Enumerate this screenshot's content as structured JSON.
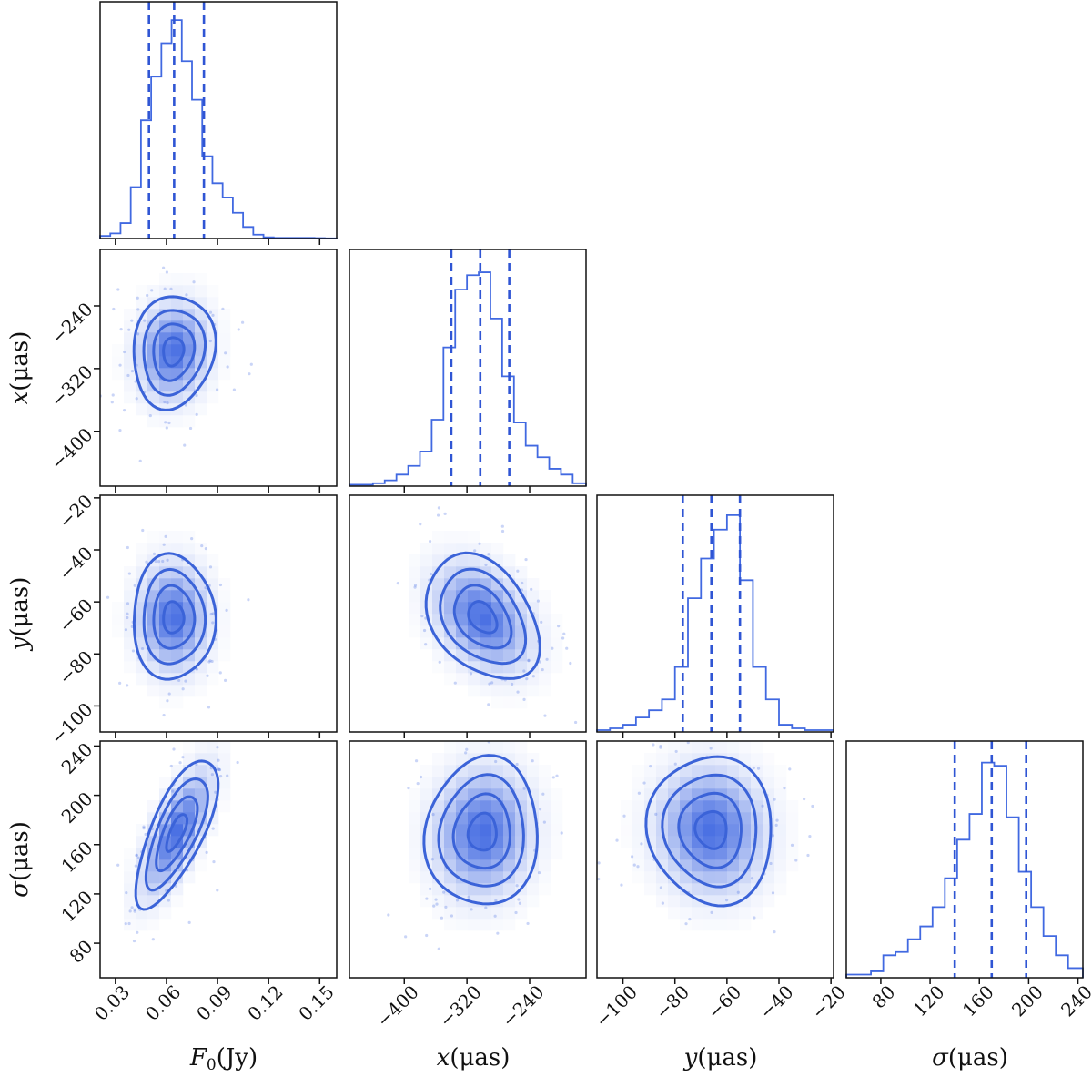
{
  "chart_data": {
    "type": "corner",
    "color": "#4169e1",
    "parameters": [
      {
        "key": "F0",
        "label_main": "F",
        "label_sub": "0",
        "label_rest": "(Jy)",
        "range": [
          0.021,
          0.16
        ],
        "ticks": [
          0.03,
          0.06,
          0.09,
          0.12,
          0.15
        ],
        "tick_labels": [
          "0.03",
          "0.06",
          "0.09",
          "0.12",
          "0.15"
        ],
        "quantiles": [
          0.0497,
          0.0645,
          0.082
        ],
        "hist_edges": [
          0.021,
          0.027,
          0.033,
          0.039,
          0.045,
          0.051,
          0.057,
          0.063,
          0.069,
          0.075,
          0.081,
          0.087,
          0.093,
          0.099,
          0.105,
          0.111,
          0.117,
          0.123,
          0.129,
          0.135,
          0.141,
          0.147,
          0.153,
          0.16
        ],
        "hist_counts": [
          2,
          4,
          12,
          40,
          92,
          126,
          152,
          170,
          138,
          108,
          64,
          43,
          32,
          20,
          9,
          3,
          1,
          0.5,
          0.5,
          0.5,
          0.5,
          0.3,
          0.2
        ],
        "hist_max": 180,
        "marginal_label": ""
      },
      {
        "key": "x",
        "label_main": "x",
        "label_rest": "(μas)",
        "range": [
          -470,
          -168
        ],
        "ticks": [
          -400,
          -320,
          -240
        ],
        "tick_labels": [
          "−400",
          "−320",
          "−240"
        ],
        "quantiles": [
          -340,
          -303,
          -266
        ],
        "hist_edges": [
          -470,
          -455,
          -440,
          -425,
          -410,
          -395,
          -380,
          -365,
          -350,
          -335,
          -320,
          -305,
          -290,
          -275,
          -260,
          -245,
          -230,
          -215,
          -200,
          -185,
          -168
        ],
        "hist_counts": [
          0.5,
          0.5,
          1,
          2,
          4,
          7,
          12,
          23,
          48,
          68,
          73,
          74,
          58,
          38,
          22,
          14,
          10,
          6,
          4,
          1
        ],
        "hist_max": 80,
        "marginal_label": ""
      },
      {
        "key": "y",
        "label_main": "y",
        "label_rest": "(μas)",
        "range": [
          -110,
          -19
        ],
        "ticks": [
          -100,
          -80,
          -60,
          -40,
          -20
        ],
        "tick_labels": [
          "−100",
          "−80",
          "−60",
          "−40",
          "−20"
        ],
        "quantiles": [
          -77,
          -66,
          -55
        ],
        "hist_edges": [
          -110,
          -105,
          -100,
          -95,
          -90,
          -85,
          -80,
          -75,
          -70,
          -65,
          -60,
          -55,
          -50,
          -45,
          -40,
          -35,
          -30,
          -25,
          -19
        ],
        "hist_counts": [
          0.5,
          1,
          2,
          4,
          6,
          9,
          18,
          37,
          48,
          56,
          60,
          42,
          18,
          9,
          2,
          1,
          0.5,
          0.5
        ],
        "hist_max": 64,
        "marginal_label": ""
      },
      {
        "key": "sigma",
        "label_main": "σ",
        "label_rest": "(μas)",
        "range": [
          52,
          244
        ],
        "ticks": [
          80,
          120,
          160,
          200,
          240
        ],
        "tick_labels": [
          "80",
          "120",
          "160",
          "200",
          "240"
        ],
        "quantiles": [
          140,
          170,
          198
        ],
        "hist_edges": [
          52,
          62,
          72,
          82,
          92,
          102,
          112,
          122,
          132,
          142,
          152,
          162,
          172,
          182,
          192,
          202,
          212,
          222,
          232,
          244
        ],
        "hist_counts": [
          1,
          1,
          2,
          7,
          8,
          12,
          16,
          22,
          31,
          43,
          51,
          67,
          66,
          50,
          33,
          22,
          13,
          7,
          3
        ],
        "hist_max": 72,
        "marginal_label": ""
      }
    ],
    "pairs": [
      {
        "row": 1,
        "col": 0,
        "center": [
          0.064,
          -298
        ],
        "sx": 0.012,
        "sy": 36,
        "rho": 0.1
      },
      {
        "row": 2,
        "col": 0,
        "center": [
          0.064,
          -66
        ],
        "sx": 0.012,
        "sy": 12,
        "rho": 0.0
      },
      {
        "row": 2,
        "col": 1,
        "center": [
          -300,
          -66
        ],
        "sx": 36,
        "sy": 12,
        "rho": -0.35
      },
      {
        "row": 3,
        "col": 0,
        "center": [
          0.066,
          170
        ],
        "sx": 0.012,
        "sy": 30,
        "rho": 0.72
      },
      {
        "row": 3,
        "col": 1,
        "center": [
          -300,
          170
        ],
        "sx": 36,
        "sy": 30,
        "rho": 0.05
      },
      {
        "row": 3,
        "col": 2,
        "center": [
          -66,
          172
        ],
        "sx": 12,
        "sy": 30,
        "rho": -0.05
      }
    ],
    "contour_levels_sigma": [
      0.5,
      1.0,
      1.5,
      2.0
    ],
    "title": ""
  }
}
